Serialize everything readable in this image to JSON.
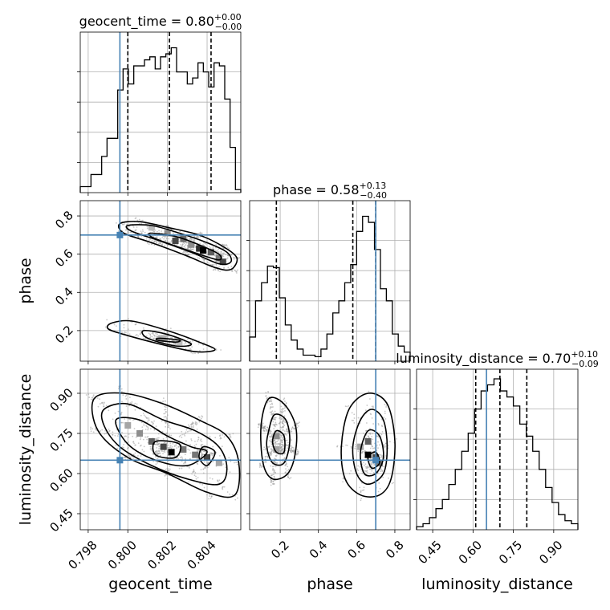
{
  "chart_data": {
    "type": "corner",
    "parameters": [
      {
        "key": "geocent_time",
        "xlabel": "geocent_time",
        "title": {
          "main": "geocent_time = 0.80",
          "sup": "+0.00",
          "sub": "−0.00"
        },
        "range": [
          0.7976,
          0.8057
        ],
        "ticks": [
          0.798,
          0.8,
          0.802,
          0.804
        ],
        "tick_labels": [
          "0.798",
          "0.800",
          "0.802",
          "0.804"
        ],
        "truth": 0.7996,
        "quantiles": [
          0.8,
          0.8021,
          0.8042
        ],
        "hist": [
          0.04,
          0.04,
          0.12,
          0.12,
          0.24,
          0.36,
          0.36,
          0.68,
          0.82,
          0.72,
          0.84,
          0.84,
          0.88,
          0.9,
          0.82,
          0.9,
          0.92,
          0.96,
          0.8,
          0.8,
          0.72,
          0.76,
          0.86,
          0.8,
          0.7,
          0.86,
          0.84,
          0.62,
          0.3,
          0.02
        ]
      },
      {
        "key": "phase",
        "xlabel": "phase",
        "title": {
          "main": "phase = 0.58",
          "sup": "+0.13",
          "sub": "−0.40"
        },
        "range": [
          0.04,
          0.88
        ],
        "ticks": [
          0.2,
          0.4,
          0.6,
          0.8
        ],
        "tick_labels": [
          "0.2",
          "0.4",
          "0.6",
          "0.8"
        ],
        "truth": 0.7,
        "quantiles": [
          0.18,
          0.58,
          0.7
        ],
        "hist": [
          0.16,
          0.4,
          0.52,
          0.63,
          0.62,
          0.42,
          0.24,
          0.14,
          0.08,
          0.04,
          0.04,
          0.03,
          0.08,
          0.18,
          0.32,
          0.4,
          0.52,
          0.64,
          0.86,
          0.96,
          0.92,
          0.74,
          0.48,
          0.4,
          0.18,
          0.1,
          0.06
        ]
      },
      {
        "key": "luminosity_distance",
        "xlabel": "luminosity_distance",
        "title": {
          "main": "luminosity_distance = 0.70",
          "sup": "+0.10",
          "sub": "−0.09"
        },
        "range": [
          0.39,
          0.99
        ],
        "ticks": [
          0.45,
          0.6,
          0.75,
          0.9
        ],
        "tick_labels": [
          "0.45",
          "0.60",
          "0.75",
          "0.90"
        ],
        "truth": 0.65,
        "quantiles": [
          0.61,
          0.7,
          0.8
        ],
        "hist": [
          0.02,
          0.04,
          0.08,
          0.14,
          0.2,
          0.3,
          0.4,
          0.52,
          0.64,
          0.8,
          0.92,
          0.96,
          1.0,
          0.92,
          0.88,
          0.82,
          0.7,
          0.62,
          0.52,
          0.4,
          0.28,
          0.18,
          0.1,
          0.06,
          0.04
        ]
      }
    ],
    "pair_ticks": {
      "phase": {
        "ticks": [
          0.2,
          0.4,
          0.6,
          0.8
        ],
        "tick_labels": [
          "0.2",
          "0.4",
          "0.6",
          "0.8"
        ]
      },
      "luminosity_distance": {
        "ticks": [
          0.45,
          0.6,
          0.75,
          0.9
        ],
        "tick_labels": [
          "0.45",
          "0.60",
          "0.75",
          "0.90"
        ]
      }
    },
    "pairs": [
      {
        "x": "geocent_time",
        "y": "phase",
        "truth": [
          0.7996,
          0.7
        ],
        "contour_levels": [
          [
            [
              0.7996,
              0.76
            ],
            [
              0.8006,
              0.77
            ],
            [
              0.802,
              0.74
            ],
            [
              0.8036,
              0.7
            ],
            [
              0.8048,
              0.64
            ],
            [
              0.8055,
              0.58
            ],
            [
              0.8052,
              0.52
            ],
            [
              0.8044,
              0.53
            ],
            [
              0.803,
              0.59
            ],
            [
              0.8012,
              0.66
            ],
            [
              0.7998,
              0.71
            ]
          ],
          [
            [
              0.8,
              0.75
            ],
            [
              0.8012,
              0.75
            ],
            [
              0.8026,
              0.71
            ],
            [
              0.804,
              0.66
            ],
            [
              0.805,
              0.61
            ],
            [
              0.8052,
              0.56
            ],
            [
              0.8046,
              0.55
            ],
            [
              0.8032,
              0.61
            ],
            [
              0.8016,
              0.67
            ],
            [
              0.8002,
              0.72
            ]
          ],
          [
            [
              0.8012,
              0.71
            ],
            [
              0.8025,
              0.69
            ],
            [
              0.8038,
              0.64
            ],
            [
              0.8046,
              0.6
            ],
            [
              0.8046,
              0.57
            ],
            [
              0.8036,
              0.6
            ],
            [
              0.8022,
              0.65
            ],
            [
              0.8012,
              0.69
            ]
          ],
          [
            [
              0.7992,
              0.24
            ],
            [
              0.8002,
              0.25
            ],
            [
              0.802,
              0.2
            ],
            [
              0.8036,
              0.14
            ],
            [
              0.8044,
              0.1
            ],
            [
              0.8034,
              0.09
            ],
            [
              0.8016,
              0.13
            ],
            [
              0.7998,
              0.18
            ],
            [
              0.799,
              0.21
            ]
          ],
          [
            [
              0.8008,
              0.2
            ],
            [
              0.802,
              0.18
            ],
            [
              0.8032,
              0.13
            ],
            [
              0.8024,
              0.12
            ],
            [
              0.801,
              0.16
            ]
          ],
          [
            [
              0.8016,
              0.16
            ],
            [
              0.8026,
              0.15
            ],
            [
              0.8024,
              0.14
            ],
            [
              0.8015,
              0.15
            ]
          ]
        ],
        "density_cells": [
          [
            0.8012,
            0.74,
            0.2
          ],
          [
            0.802,
            0.71,
            0.4
          ],
          [
            0.8024,
            0.67,
            0.7
          ],
          [
            0.8028,
            0.68,
            0.55
          ],
          [
            0.8032,
            0.65,
            0.4
          ],
          [
            0.8036,
            0.63,
            0.8
          ],
          [
            0.8038,
            0.62,
            1.0
          ],
          [
            0.8042,
            0.61,
            0.6
          ],
          [
            0.8046,
            0.58,
            0.5
          ],
          [
            0.8048,
            0.56,
            0.7
          ],
          [
            0.8018,
            0.16,
            0.25
          ],
          [
            0.8026,
            0.14,
            0.2
          ]
        ]
      },
      {
        "x": "geocent_time",
        "y": "luminosity_distance",
        "truth": [
          0.7996,
          0.65
        ],
        "contour_levels": [
          [
            [
              0.7983,
              0.88
            ],
            [
              0.7998,
              0.9
            ],
            [
              0.8018,
              0.86
            ],
            [
              0.8036,
              0.8
            ],
            [
              0.805,
              0.74
            ],
            [
              0.8056,
              0.64
            ],
            [
              0.8054,
              0.52
            ],
            [
              0.804,
              0.53
            ],
            [
              0.802,
              0.6
            ],
            [
              0.8,
              0.66
            ],
            [
              0.7985,
              0.76
            ]
          ],
          [
            [
              0.7988,
              0.84
            ],
            [
              0.8,
              0.86
            ],
            [
              0.8018,
              0.8
            ],
            [
              0.8034,
              0.76
            ],
            [
              0.8046,
              0.7
            ],
            [
              0.805,
              0.62
            ],
            [
              0.8046,
              0.56
            ],
            [
              0.803,
              0.58
            ],
            [
              0.8012,
              0.63
            ],
            [
              0.7996,
              0.7
            ],
            [
              0.7988,
              0.78
            ]
          ],
          [
            [
              0.7994,
              0.8
            ],
            [
              0.8006,
              0.8
            ],
            [
              0.802,
              0.74
            ],
            [
              0.8032,
              0.7
            ],
            [
              0.804,
              0.68
            ],
            [
              0.803,
              0.63
            ],
            [
              0.8014,
              0.65
            ],
            [
              0.8,
              0.71
            ]
          ],
          [
            [
              0.8014,
              0.72
            ],
            [
              0.8026,
              0.71
            ],
            [
              0.8024,
              0.66
            ],
            [
              0.8014,
              0.67
            ]
          ],
          [
            [
              0.8038,
              0.7
            ],
            [
              0.8044,
              0.68
            ],
            [
              0.804,
              0.63
            ],
            [
              0.8036,
              0.66
            ]
          ]
        ],
        "density_cells": [
          [
            0.8,
            0.78,
            0.3
          ],
          [
            0.8006,
            0.75,
            0.4
          ],
          [
            0.8012,
            0.72,
            0.6
          ],
          [
            0.8018,
            0.7,
            0.7
          ],
          [
            0.8022,
            0.68,
            1.0
          ],
          [
            0.8028,
            0.69,
            0.5
          ],
          [
            0.8034,
            0.67,
            0.5
          ],
          [
            0.804,
            0.66,
            0.7
          ],
          [
            0.8046,
            0.64,
            0.3
          ]
        ]
      },
      {
        "x": "phase",
        "y": "luminosity_distance",
        "truth": [
          0.7,
          0.65
        ],
        "contour_levels": [
          [
            [
              0.1,
              0.78
            ],
            [
              0.14,
              0.88
            ],
            [
              0.22,
              0.86
            ],
            [
              0.28,
              0.78
            ],
            [
              0.28,
              0.68
            ],
            [
              0.24,
              0.6
            ],
            [
              0.16,
              0.58
            ],
            [
              0.11,
              0.64
            ]
          ],
          [
            [
              0.14,
              0.76
            ],
            [
              0.17,
              0.82
            ],
            [
              0.23,
              0.8
            ],
            [
              0.25,
              0.72
            ],
            [
              0.22,
              0.64
            ],
            [
              0.16,
              0.64
            ],
            [
              0.13,
              0.7
            ]
          ],
          [
            [
              0.18,
              0.76
            ],
            [
              0.22,
              0.74
            ],
            [
              0.22,
              0.68
            ],
            [
              0.18,
              0.68
            ],
            [
              0.16,
              0.72
            ]
          ],
          [
            [
              0.52,
              0.7
            ],
            [
              0.56,
              0.84
            ],
            [
              0.66,
              0.9
            ],
            [
              0.76,
              0.86
            ],
            [
              0.8,
              0.72
            ],
            [
              0.78,
              0.58
            ],
            [
              0.72,
              0.52
            ],
            [
              0.62,
              0.52
            ],
            [
              0.54,
              0.58
            ]
          ],
          [
            [
              0.58,
              0.7
            ],
            [
              0.62,
              0.8
            ],
            [
              0.68,
              0.84
            ],
            [
              0.74,
              0.8
            ],
            [
              0.76,
              0.7
            ],
            [
              0.74,
              0.6
            ],
            [
              0.66,
              0.56
            ],
            [
              0.6,
              0.6
            ]
          ],
          [
            [
              0.62,
              0.68
            ],
            [
              0.66,
              0.76
            ],
            [
              0.72,
              0.74
            ],
            [
              0.74,
              0.66
            ],
            [
              0.7,
              0.6
            ],
            [
              0.64,
              0.6
            ]
          ],
          [
            [
              0.66,
              0.66
            ],
            [
              0.7,
              0.68
            ],
            [
              0.72,
              0.64
            ],
            [
              0.68,
              0.62
            ]
          ]
        ],
        "density_cells": [
          [
            0.18,
            0.74,
            0.4
          ],
          [
            0.18,
            0.69,
            0.3
          ],
          [
            0.62,
            0.7,
            0.3
          ],
          [
            0.66,
            0.72,
            0.6
          ],
          [
            0.66,
            0.67,
            1.0
          ],
          [
            0.7,
            0.66,
            0.7
          ],
          [
            0.72,
            0.64,
            0.5
          ]
        ]
      }
    ],
    "truth_color": "#4682b4",
    "hist_color": "#000000",
    "grid": true
  }
}
